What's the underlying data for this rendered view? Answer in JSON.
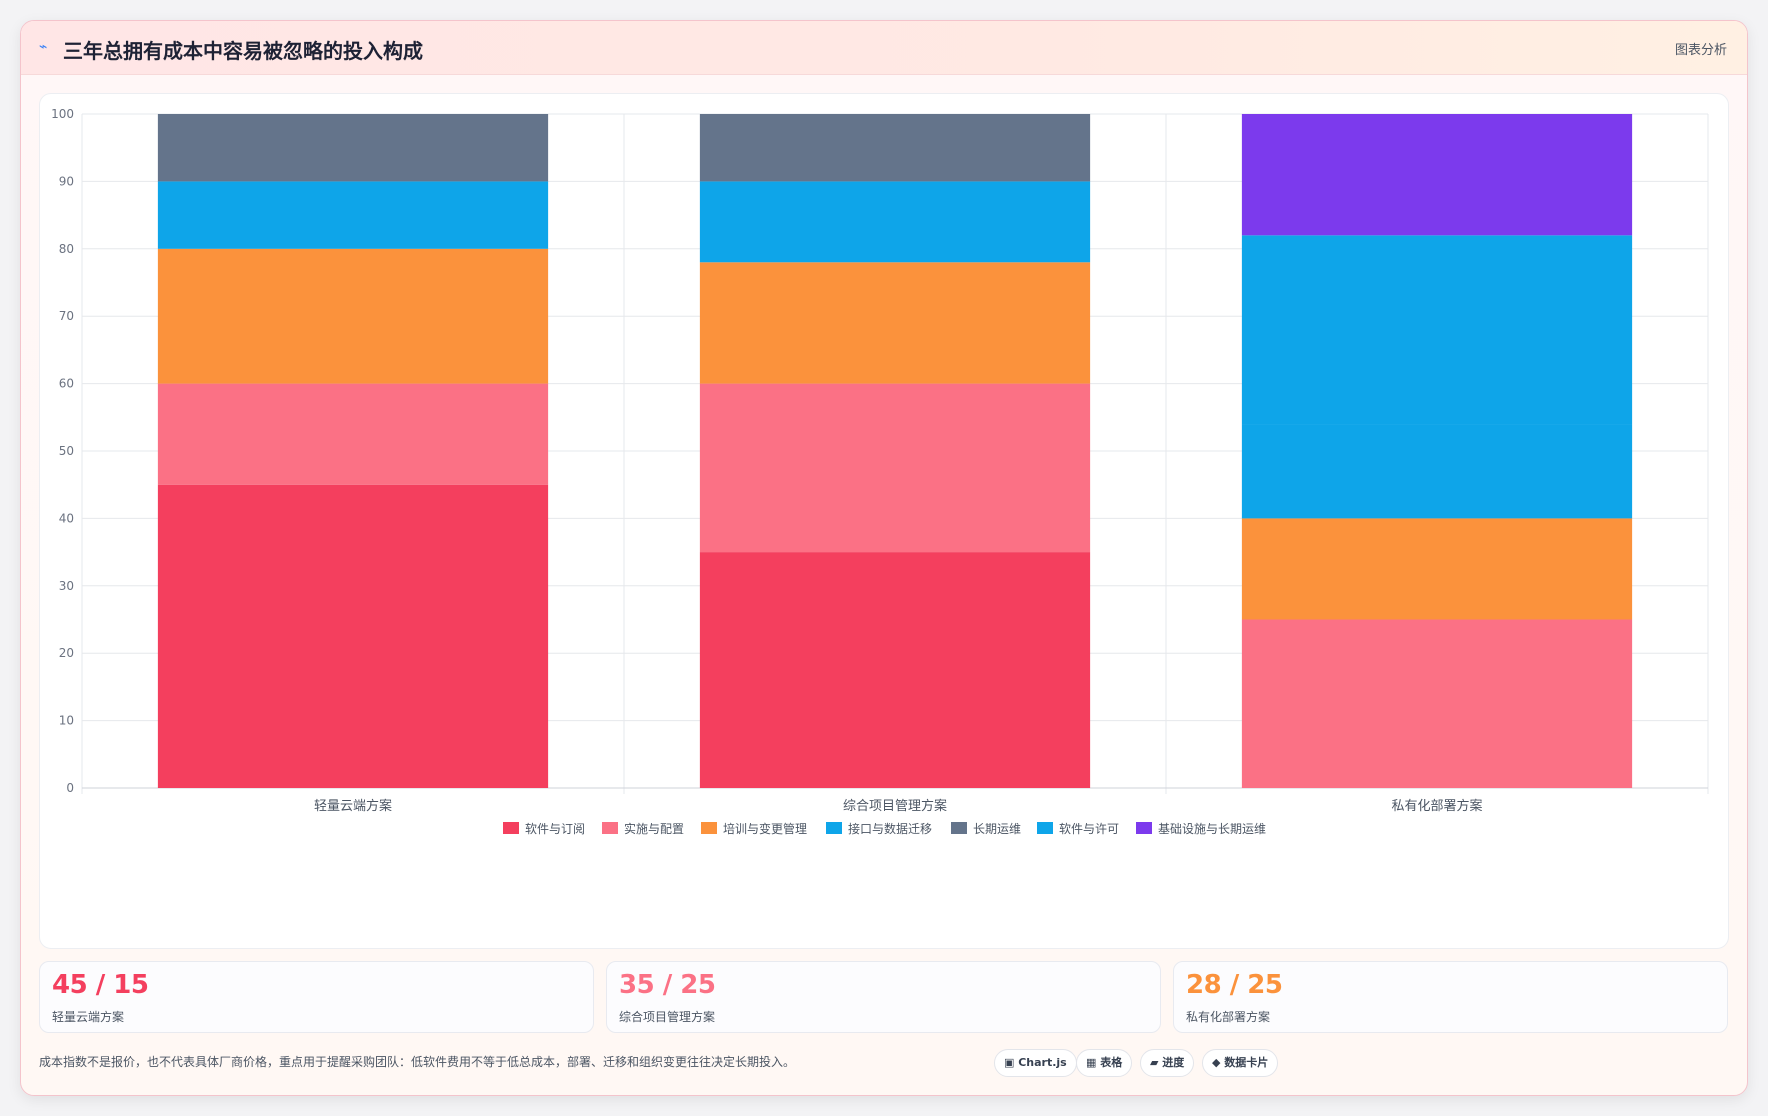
{
  "header": {
    "icon": "bolt-icon",
    "title": "三年总拥有成本中容易被忽略的投入构成",
    "link": "图表分析"
  },
  "chart_data": {
    "type": "bar",
    "stacked": true,
    "categories": [
      "轻量云端方案",
      "综合项目管理方案",
      "私有化部署方案"
    ],
    "ylim": [
      0,
      100
    ],
    "yticks": [
      0,
      10,
      20,
      30,
      40,
      50,
      60,
      70,
      80,
      90,
      100
    ],
    "grid": true,
    "legend": "bottom",
    "series": [
      {
        "name": "软件与订阅",
        "color": "#f43f5e",
        "values": [
          45,
          35,
          0
        ]
      },
      {
        "name": "实施与配置",
        "color": "#fb7185",
        "values": [
          15,
          25,
          25
        ]
      },
      {
        "name": "培训与变更管理",
        "color": "#fb923c",
        "values": [
          20,
          18,
          15
        ]
      },
      {
        "name": "接口与数据迁移",
        "color": "#0ea5e9",
        "values": [
          10,
          12,
          14
        ]
      },
      {
        "name": "长期运维",
        "color": "#64748b",
        "values": [
          10,
          10,
          0
        ]
      },
      {
        "name": "软件与许可",
        "color": "#0ea5e9",
        "values": [
          0,
          0,
          28
        ]
      },
      {
        "name": "基础设施与长期运维",
        "color": "#7c3aed",
        "values": [
          0,
          0,
          18
        ]
      }
    ]
  },
  "stats": [
    {
      "value": "45 / 15",
      "label": "轻量云端方案",
      "color": "#f43f5e"
    },
    {
      "value": "35 / 25",
      "label": "综合项目管理方案",
      "color": "#fb7185"
    },
    {
      "value": "28 / 25",
      "label": "私有化部署方案",
      "color": "#fb923c"
    }
  ],
  "footnote": "成本指数不是报价，也不代表具体厂商价格，重点用于提醒采购团队：低软件费用不等于低总成本，部署、迁移和组织变更往往决定长期投入。",
  "chips": [
    {
      "icon": "square-icon",
      "label": "▣ Chart.js"
    },
    {
      "icon": "table-icon",
      "label": "▦ 表格"
    },
    {
      "icon": "progress-icon",
      "label": "▰ 进度"
    },
    {
      "icon": "diamond-icon",
      "label": "◆ 数据卡片"
    }
  ]
}
